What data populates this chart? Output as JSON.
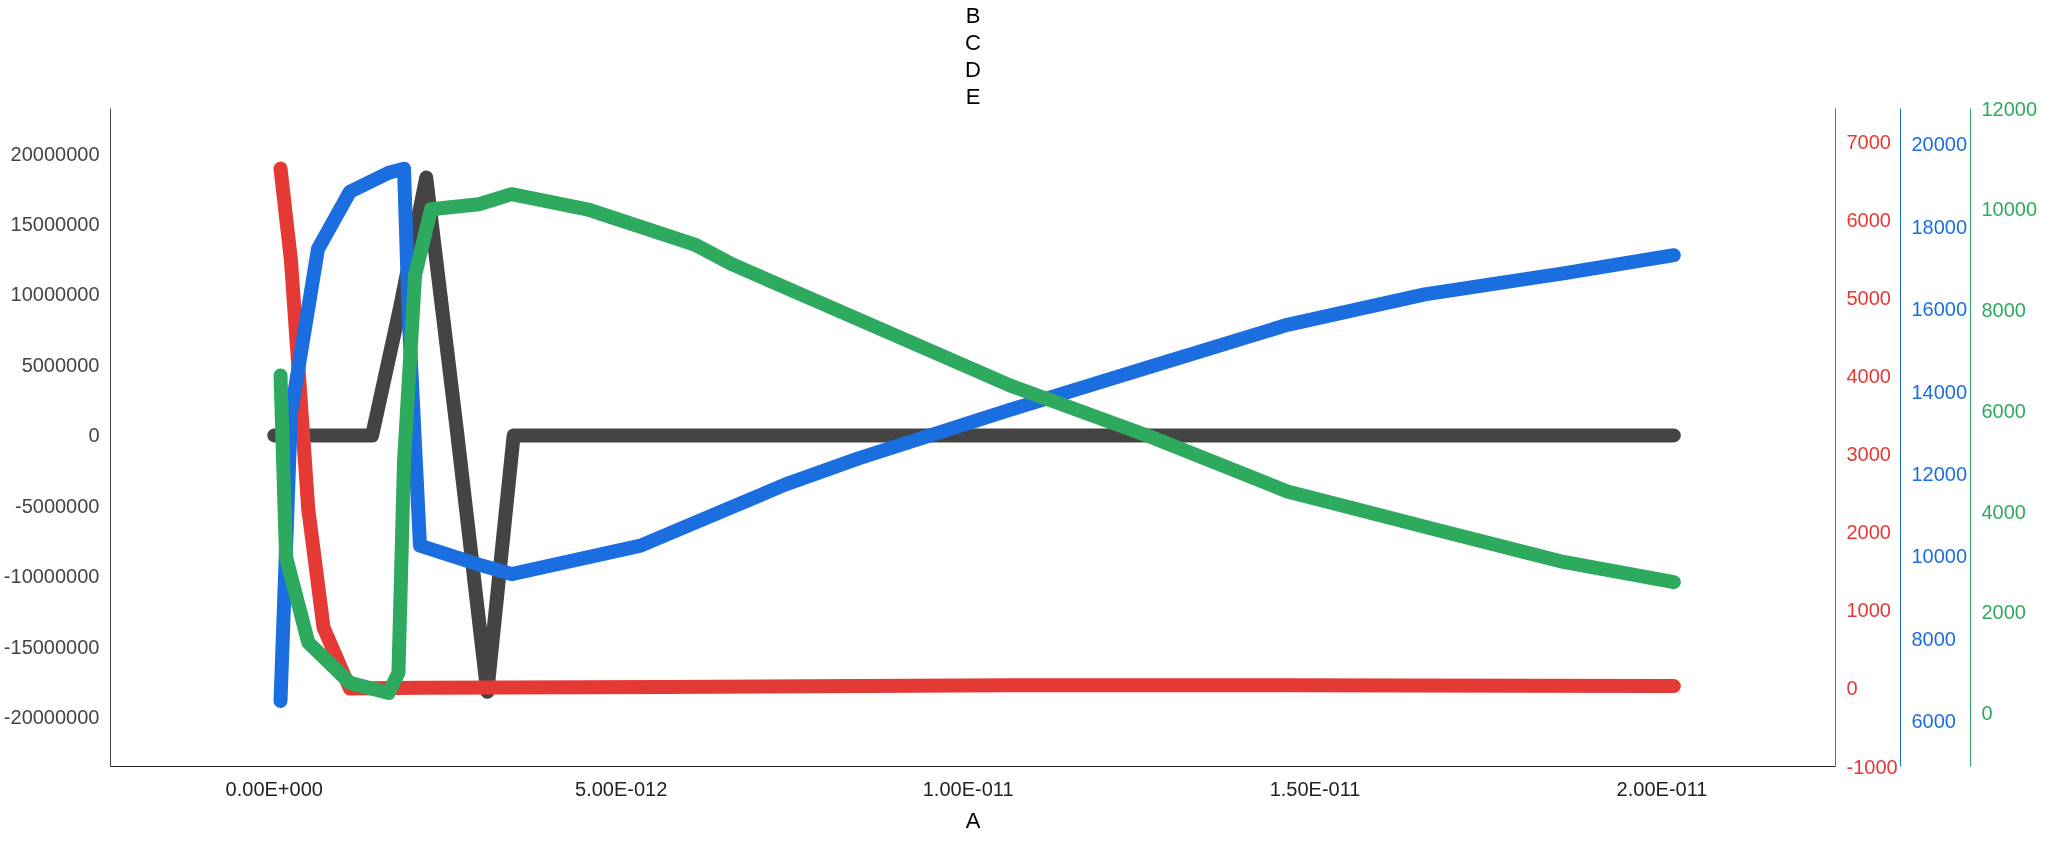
{
  "chart_data": [
    {
      "type": "line",
      "xlabel": "A",
      "annotations": [
        "B",
        "C",
        "D",
        "E"
      ],
      "xlim": [
        -2.36e-12,
        2.25e-11
      ],
      "xticks": [
        {
          "value": 0,
          "label": "0.00E+000"
        },
        {
          "value": 5e-12,
          "label": "5.00E-012"
        },
        {
          "value": 1e-11,
          "label": "1.00E-011"
        },
        {
          "value": 1.5e-11,
          "label": "1.50E-011"
        },
        {
          "value": 2e-11,
          "label": "2.00E-011"
        }
      ],
      "ylim": [
        -23500000,
        23200000
      ],
      "yticks": [
        -20000000,
        -15000000,
        -10000000,
        -5000000,
        0,
        5000000,
        10000000,
        15000000,
        20000000
      ],
      "y2lim": [
        -1000,
        7430
      ],
      "y2ticks": [
        -1000,
        0,
        1000,
        2000,
        3000,
        4000,
        5000,
        6000,
        7000
      ],
      "y3lim": [
        4900,
        20870
      ],
      "y3ticks": [
        6000,
        8000,
        10000,
        12000,
        14000,
        16000,
        18000,
        20000
      ],
      "grid": false,
      "line_style": "solid",
      "series": [
        {
          "color": "#444444",
          "x": [
            0,
            1.41e-12,
            1.81e-12,
            2.19e-12,
            2.64e-12,
            3.07e-12,
            3.45e-12,
            2.017e-11
          ],
          "values": [
            0,
            0,
            9000000,
            18300000,
            0,
            -18200000,
            0,
            0
          ]
        },
        {
          "color": "#e53935",
          "axis": "y2",
          "x": [
            9e-14,
            2.4e-13,
            4.9e-13,
            7.1e-13,
            1.09e-12,
            2.1e-12,
            5.63e-12,
            1.061e-11,
            1.46e-11,
            2.017e-11
          ],
          "values": [
            6660,
            5490,
            2300,
            780,
            0,
            10,
            20,
            40,
            40,
            30
          ]
        },
        {
          "color": "#1a6ee0",
          "axis": "y3",
          "x": [
            9e-14,
            2.4e-13,
            6.3e-13,
            1.09e-12,
            1.65e-12,
            1.87e-12,
            1.94e-12,
            2.1e-12,
            2.95e-12,
            3.42e-12,
            5.28e-12,
            7.36e-12,
            8.42e-12,
            1.061e-11,
            1.26e-11,
            1.46e-11,
            1.658e-11,
            1.858e-11,
            2.017e-11
          ],
          "values": [
            6490,
            13460,
            17460,
            18850,
            19310,
            19410,
            15740,
            10260,
            9800,
            9570,
            10260,
            11740,
            12380,
            13560,
            14590,
            15620,
            16360,
            16870,
            17310
          ]
        }
      ]
    },
    {
      "type": "line",
      "xlim": [
        -2.36e-12,
        2.25e-11
      ],
      "ylim": [
        -1060,
        12000
      ],
      "yticks": [
        0,
        2000,
        4000,
        6000,
        8000,
        10000,
        12000
      ],
      "tick_labels": "y",
      "grid": false,
      "line_style": "solid",
      "series": [
        {
          "color": "#2eaa5e",
          "x": [
            9e-14,
            1.7e-13,
            4.9e-13,
            1.09e-12,
            1.65e-12,
            1.79e-12,
            1.87e-12,
            2.03e-12,
            2.26e-12,
            2.95e-12,
            3.42e-12,
            4.51e-12,
            6.06e-12,
            6.61e-12,
            8.61e-12,
            1.061e-11,
            1.26e-11,
            1.46e-11,
            1.658e-11,
            1.858e-11,
            2.017e-11
          ],
          "values": [
            6700,
            3100,
            1400,
            600,
            400,
            800,
            5000,
            8700,
            10000,
            10100,
            10300,
            10000,
            9300,
            8900,
            7700,
            6500,
            5500,
            4400,
            3700,
            3000,
            2600
          ]
        }
      ]
    }
  ]
}
